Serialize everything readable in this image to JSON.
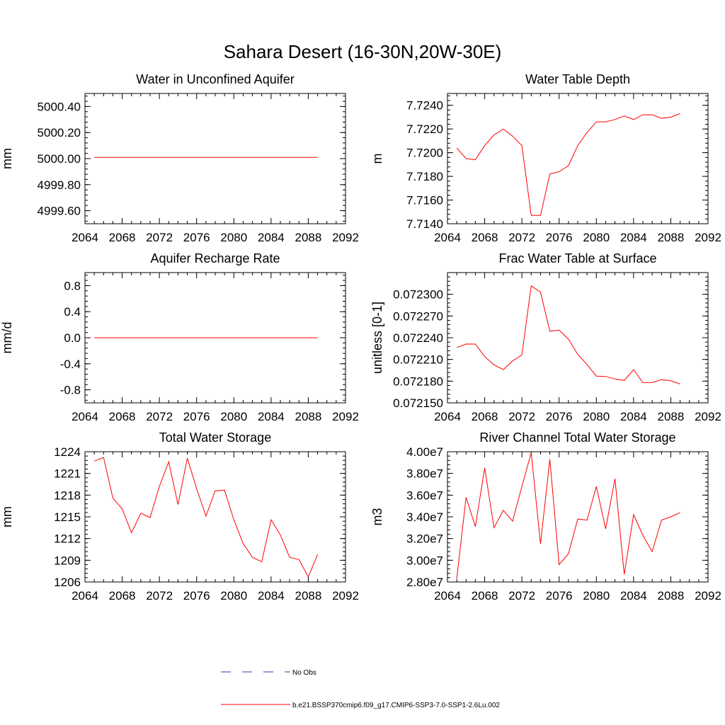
{
  "figure_title": "Sahara Desert (16-30N,20W-30E)",
  "colors": {
    "model": "#ff0000",
    "obs": "#3a3aa8",
    "axis": "#000000"
  },
  "legend": [
    {
      "label": "No Obs",
      "style": "dashed",
      "color": "#3a3aa8"
    },
    {
      "label": "b.e21.BSSP370cmip6.f09_g17.CMIP6-SSP3-7.0-SSP1-2.6Lu.002",
      "style": "solid",
      "color": "#ff0000"
    }
  ],
  "chart_data": [
    {
      "type": "line",
      "title": "Water in Unconfined Aquifer",
      "ylabel": "mm",
      "xlim": [
        2064,
        2092
      ],
      "xticks": [
        2064,
        2068,
        2072,
        2076,
        2080,
        2084,
        2088,
        2092
      ],
      "xtick_labels": [
        "2064",
        "2068",
        "2072",
        "2076",
        "2080",
        "2084",
        "2088",
        "2092"
      ],
      "ylim": [
        4999.5,
        5000.5
      ],
      "yticks": [
        4999.6,
        4999.8,
        5000.0,
        5000.2,
        5000.4
      ],
      "ytick_labels": [
        "4999.60",
        "4999.80",
        "5000.00",
        "5000.20",
        "5000.40"
      ],
      "x": [
        2065,
        2066,
        2067,
        2068,
        2069,
        2070,
        2071,
        2072,
        2073,
        2074,
        2075,
        2076,
        2077,
        2078,
        2079,
        2080,
        2081,
        2082,
        2083,
        2084,
        2085,
        2086,
        2087,
        2088,
        2089
      ],
      "y": [
        5000.01,
        5000.01,
        5000.01,
        5000.01,
        5000.01,
        5000.01,
        5000.01,
        5000.01,
        5000.01,
        5000.01,
        5000.01,
        5000.01,
        5000.01,
        5000.01,
        5000.01,
        5000.01,
        5000.01,
        5000.01,
        5000.01,
        5000.01,
        5000.01,
        5000.01,
        5000.01,
        5000.01,
        5000.01
      ]
    },
    {
      "type": "line",
      "title": "Water Table Depth",
      "ylabel": "m",
      "xlim": [
        2064,
        2092
      ],
      "xticks": [
        2064,
        2068,
        2072,
        2076,
        2080,
        2084,
        2088,
        2092
      ],
      "xtick_labels": [
        "2064",
        "2068",
        "2072",
        "2076",
        "2080",
        "2084",
        "2088",
        "2092"
      ],
      "ylim": [
        7.714,
        7.725
      ],
      "yticks": [
        7.714,
        7.716,
        7.718,
        7.72,
        7.722,
        7.724
      ],
      "ytick_labels": [
        "7.7140",
        "7.7160",
        "7.7180",
        "7.7200",
        "7.7220",
        "7.7240"
      ],
      "x": [
        2065,
        2066,
        2067,
        2068,
        2069,
        2070,
        2071,
        2072,
        2073,
        2074,
        2075,
        2076,
        2077,
        2078,
        2079,
        2080,
        2081,
        2082,
        2083,
        2084,
        2085,
        2086,
        2087,
        2088,
        2089
      ],
      "y": [
        7.7204,
        7.7195,
        7.7194,
        7.7206,
        7.7215,
        7.722,
        7.7214,
        7.7206,
        7.7147,
        7.7147,
        7.7182,
        7.7184,
        7.7189,
        7.7206,
        7.7217,
        7.7226,
        7.7226,
        7.7228,
        7.7231,
        7.7228,
        7.7232,
        7.7232,
        7.7229,
        7.723,
        7.7233
      ]
    },
    {
      "type": "line",
      "title": "Aquifer Recharge Rate",
      "ylabel": "mm/d",
      "xlim": [
        2064,
        2092
      ],
      "xticks": [
        2064,
        2068,
        2072,
        2076,
        2080,
        2084,
        2088,
        2092
      ],
      "xtick_labels": [
        "2064",
        "2068",
        "2072",
        "2076",
        "2080",
        "2084",
        "2088",
        "2092"
      ],
      "ylim": [
        -1.0,
        1.0
      ],
      "yticks": [
        -0.8,
        -0.4,
        0.0,
        0.4,
        0.8
      ],
      "ytick_labels": [
        "-0.8",
        "-0.4",
        "0.0",
        "0.4",
        "0.8"
      ],
      "x": [
        2065,
        2066,
        2067,
        2068,
        2069,
        2070,
        2071,
        2072,
        2073,
        2074,
        2075,
        2076,
        2077,
        2078,
        2079,
        2080,
        2081,
        2082,
        2083,
        2084,
        2085,
        2086,
        2087,
        2088,
        2089
      ],
      "y": [
        0,
        0,
        0,
        0,
        0,
        0,
        0,
        0,
        0,
        0,
        0,
        0,
        0,
        0,
        0,
        0,
        0,
        0,
        0,
        0,
        0,
        0,
        0,
        0,
        0
      ]
    },
    {
      "type": "line",
      "title": "Frac Water Table at Surface",
      "ylabel": "unitless [0-1]",
      "xlim": [
        2064,
        2092
      ],
      "xticks": [
        2064,
        2068,
        2072,
        2076,
        2080,
        2084,
        2088,
        2092
      ],
      "xtick_labels": [
        "2064",
        "2068",
        "2072",
        "2076",
        "2080",
        "2084",
        "2088",
        "2092"
      ],
      "ylim": [
        0.07215,
        0.07233
      ],
      "yticks": [
        0.07215,
        0.07218,
        0.07221,
        0.07224,
        0.07227,
        0.0723
      ],
      "ytick_labels": [
        "0.072150",
        "0.072180",
        "0.072210",
        "0.072240",
        "0.072270",
        "0.072300"
      ],
      "x": [
        2065,
        2066,
        2067,
        2068,
        2069,
        2070,
        2071,
        2072,
        2073,
        2074,
        2075,
        2076,
        2077,
        2078,
        2079,
        2080,
        2081,
        2082,
        2083,
        2084,
        2085,
        2086,
        2087,
        2088,
        2089
      ],
      "y": [
        0.0722265,
        0.0722313,
        0.0722312,
        0.072214,
        0.0722025,
        0.072196,
        0.072208,
        0.072216,
        0.0723115,
        0.072303,
        0.072249,
        0.0722505,
        0.072238,
        0.072217,
        0.072203,
        0.072187,
        0.0721865,
        0.072183,
        0.072181,
        0.072196,
        0.072178,
        0.072178,
        0.072182,
        0.0721805,
        0.072176
      ]
    },
    {
      "type": "line",
      "title": "Total Water Storage",
      "ylabel": "mm",
      "xlim": [
        2064,
        2092
      ],
      "xticks": [
        2064,
        2068,
        2072,
        2076,
        2080,
        2084,
        2088,
        2092
      ],
      "xtick_labels": [
        "2064",
        "2068",
        "2072",
        "2076",
        "2080",
        "2084",
        "2088",
        "2092"
      ],
      "ylim": [
        1206,
        1224
      ],
      "yticks": [
        1206,
        1209,
        1212,
        1215,
        1218,
        1221,
        1224
      ],
      "ytick_labels": [
        "1206",
        "1209",
        "1212",
        "1215",
        "1218",
        "1221",
        "1224"
      ],
      "x": [
        2065,
        2066,
        2067,
        2068,
        2069,
        2070,
        2071,
        2072,
        2073,
        2074,
        2075,
        2076,
        2077,
        2078,
        2079,
        2080,
        2081,
        2082,
        2083,
        2084,
        2085,
        2086,
        2087,
        2088,
        2089
      ],
      "y": [
        1222.7,
        1223.2,
        1217.6,
        1216.1,
        1212.8,
        1215.5,
        1214.9,
        1219.2,
        1222.6,
        1216.7,
        1223.1,
        1218.9,
        1215.1,
        1218.6,
        1218.7,
        1214.6,
        1211.3,
        1209.4,
        1208.8,
        1214.6,
        1212.5,
        1209.4,
        1209.1,
        1206.7,
        1209.8
      ]
    },
    {
      "type": "line",
      "title": "River Channel Total Water Storage",
      "ylabel": "m3",
      "xlim": [
        2064,
        2092
      ],
      "xticks": [
        2064,
        2068,
        2072,
        2076,
        2080,
        2084,
        2088,
        2092
      ],
      "xtick_labels": [
        "2064",
        "2068",
        "2072",
        "2076",
        "2080",
        "2084",
        "2088",
        "2092"
      ],
      "ylim": [
        28000000,
        40000000
      ],
      "yticks": [
        28000000,
        30000000,
        32000000,
        34000000,
        36000000,
        38000000,
        40000000
      ],
      "ytick_labels": [
        "2.80e7",
        "3.00e7",
        "3.20e7",
        "3.40e7",
        "3.60e7",
        "3.80e7",
        "4.00e7"
      ],
      "x": [
        2065,
        2066,
        2067,
        2068,
        2069,
        2070,
        2071,
        2072,
        2073,
        2074,
        2075,
        2076,
        2077,
        2078,
        2079,
        2080,
        2081,
        2082,
        2083,
        2084,
        2085,
        2086,
        2087,
        2088,
        2089
      ],
      "y": [
        28300000,
        35800000,
        33100000,
        38500000,
        33000000,
        34600000,
        33600000,
        36800000,
        39900000,
        31500000,
        39300000,
        29600000,
        30600000,
        33800000,
        33700000,
        36800000,
        32900000,
        37500000,
        28700000,
        34200000,
        32300000,
        30800000,
        33700000,
        34000000,
        34400000
      ]
    }
  ]
}
